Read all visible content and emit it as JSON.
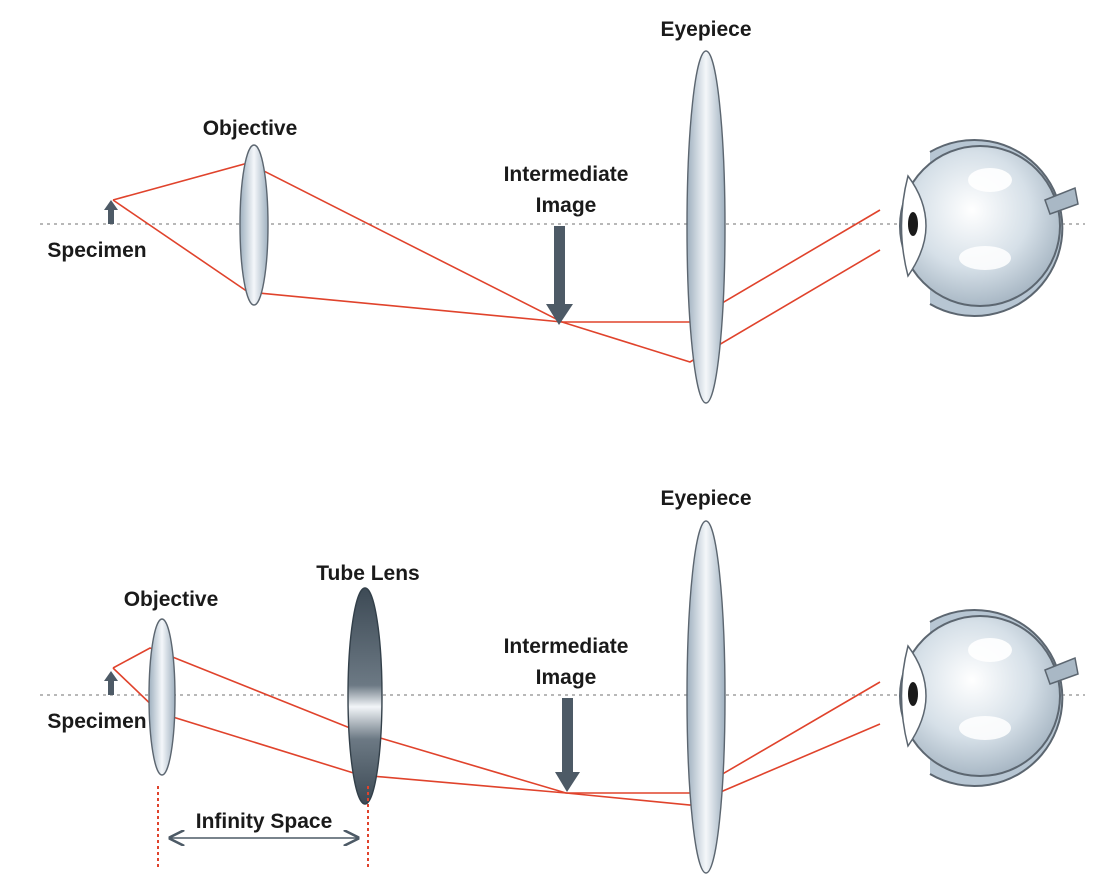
{
  "top_diagram": {
    "labels": {
      "specimen": "Specimen",
      "objective": "Objective",
      "intermediate_line1": "Intermediate",
      "intermediate_line2": "Image",
      "eyepiece": "Eyepiece"
    }
  },
  "bottom_diagram": {
    "labels": {
      "specimen": "Specimen",
      "objective": "Objective",
      "tube_lens": "Tube Lens",
      "intermediate_line1": "Intermediate",
      "intermediate_line2": "Image",
      "eyepiece": "Eyepiece",
      "infinity_space": "Infinity Space"
    }
  },
  "colors": {
    "ray": "#e0432c",
    "lens": "#c9d3dc",
    "arrow": "#4d5a66",
    "axis": "#8e8e8e"
  }
}
